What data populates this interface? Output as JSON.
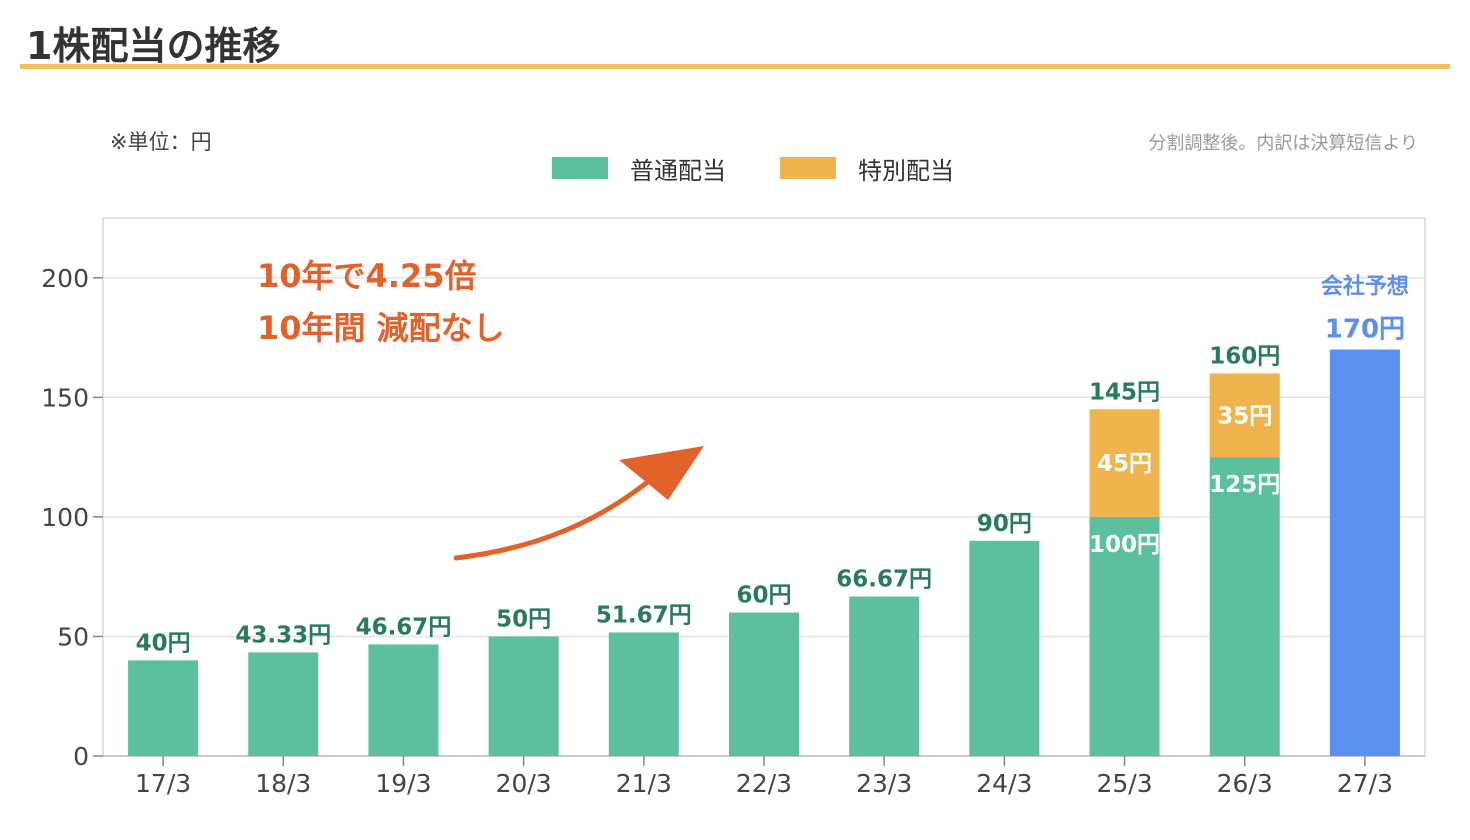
{
  "page_title": "1株配当の推移",
  "unit_note": "※単位：円",
  "source_note": "分割調整後。内訳は決算短信より",
  "callout": {
    "line1": "10年で4.25倍",
    "line2": "10年間 減配なし"
  },
  "colors": {
    "regular": "#5cbf9e",
    "special": "#f0b44f",
    "forecast": "#5b8ff0",
    "label_green": "#2a7a5e",
    "callout": "#e2622a",
    "title_rule": "#f0c060"
  },
  "chart_data": {
    "type": "bar",
    "stacked": true,
    "title": "1株配当の推移",
    "ylabel": "",
    "xlabel": "",
    "ylim": [
      0,
      225
    ],
    "yticks": [
      0,
      50,
      100,
      150,
      200
    ],
    "grid": true,
    "legend_position": "top-center",
    "categories": [
      "17/3",
      "18/3",
      "19/3",
      "20/3",
      "21/3",
      "22/3",
      "23/3",
      "24/3",
      "25/3",
      "26/3",
      "27/3"
    ],
    "series": [
      {
        "name": "普通配当",
        "values": [
          40,
          43.33,
          46.67,
          50,
          51.67,
          60,
          66.67,
          90,
          100,
          125,
          null
        ]
      },
      {
        "name": "特別配当",
        "values": [
          null,
          null,
          null,
          null,
          null,
          null,
          null,
          null,
          45,
          35,
          null
        ]
      }
    ],
    "forecast": {
      "category": "27/3",
      "value": 170,
      "label_top": "会社予想",
      "label_value": "170円"
    },
    "total_labels": [
      "40円",
      "43.33円",
      "46.67円",
      "50円",
      "51.67円",
      "60円",
      "66.67円",
      "90円",
      "145円",
      "160円",
      "170円"
    ],
    "segment_labels": [
      {
        "category": "25/3",
        "regular": "100円",
        "special": "45円"
      },
      {
        "category": "26/3",
        "regular": "125円",
        "special": "35円"
      }
    ]
  }
}
